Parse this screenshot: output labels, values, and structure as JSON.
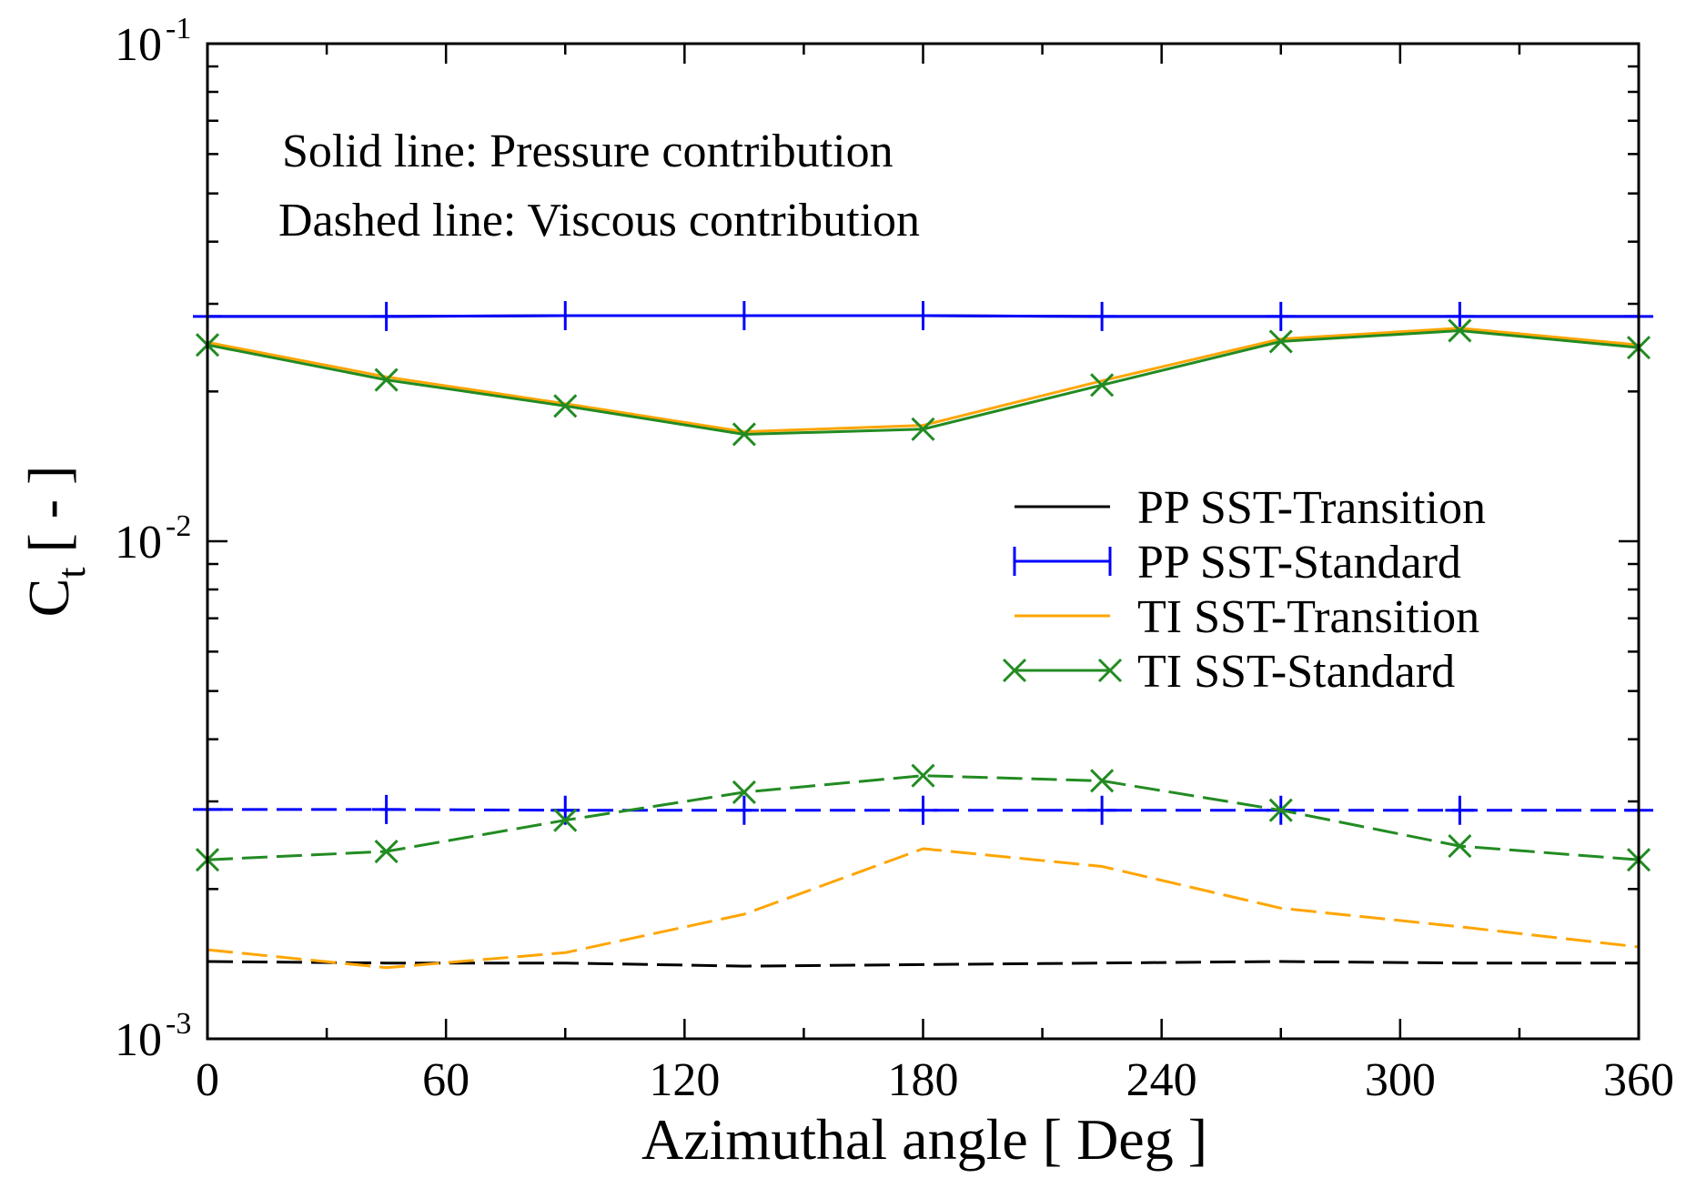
{
  "chart_data": {
    "type": "line",
    "xlabel": "Azimuthal angle [ Deg ]",
    "ylabel_main": "C",
    "ylabel_sub": "t",
    "ylabel_units": " [ - ]",
    "xlim": [
      0,
      360
    ],
    "ylim": [
      0.001,
      0.1
    ],
    "yscale": "log",
    "xticks": [
      0,
      60,
      120,
      180,
      240,
      300,
      360
    ],
    "xtick_labels": [
      "0",
      "60",
      "120",
      "180",
      "240",
      "300",
      "360"
    ],
    "yticks": [
      {
        "value": 0.1,
        "base": "10",
        "exp": "-1"
      },
      {
        "value": 0.01,
        "base": "10",
        "exp": "-2"
      },
      {
        "value": 0.001,
        "base": "10",
        "exp": "-3"
      }
    ],
    "annotations": [
      "Solid line: Pressure contribution",
      "Dashed line: Viscous contribution"
    ],
    "legend_position": "right-middle",
    "x": [
      0,
      45,
      90,
      135,
      180,
      225,
      270,
      315,
      360
    ],
    "series": [
      {
        "name": "PP SST-Transition",
        "component": "pressure",
        "style": "solid",
        "marker": "none",
        "color": "#000000",
        "in_legend": true,
        "values": [
          0.0283,
          0.0283,
          0.0284,
          0.0284,
          0.0284,
          0.0283,
          0.0283,
          0.0283,
          0.0283
        ]
      },
      {
        "name": "PP SST-Standard",
        "component": "pressure",
        "style": "solid",
        "marker": "plus",
        "color": "#0000ff",
        "in_legend": true,
        "values": [
          0.0283,
          0.0283,
          0.0284,
          0.0284,
          0.0284,
          0.0283,
          0.0283,
          0.0283,
          0.0283
        ]
      },
      {
        "name": "TI SST-Transition",
        "component": "pressure",
        "style": "solid",
        "marker": "none",
        "color": "#ffa500",
        "in_legend": true,
        "values": [
          0.0251,
          0.0214,
          0.0189,
          0.0166,
          0.0171,
          0.021,
          0.0255,
          0.0268,
          0.0248
        ]
      },
      {
        "name": "TI SST-Standard",
        "component": "pressure",
        "style": "solid",
        "marker": "x",
        "color": "#228b22",
        "in_legend": true,
        "values": [
          0.0248,
          0.0211,
          0.0187,
          0.0164,
          0.0168,
          0.0206,
          0.0252,
          0.0265,
          0.0245
        ]
      },
      {
        "name": "PP SST-Transition",
        "component": "viscous",
        "style": "dashed",
        "marker": "none",
        "color": "#000000",
        "in_legend": false,
        "values": [
          0.00143,
          0.00142,
          0.00142,
          0.0014,
          0.00141,
          0.00142,
          0.00143,
          0.00142,
          0.00142
        ]
      },
      {
        "name": "PP SST-Standard",
        "component": "viscous",
        "style": "dashed",
        "marker": "plus",
        "color": "#0000ff",
        "in_legend": false,
        "values": [
          0.00289,
          0.00289,
          0.00288,
          0.00288,
          0.00288,
          0.00288,
          0.00288,
          0.00288,
          0.00288
        ]
      },
      {
        "name": "TI SST-Transition",
        "component": "viscous",
        "style": "dashed",
        "marker": "none",
        "color": "#ffa500",
        "in_legend": false,
        "values": [
          0.00151,
          0.00139,
          0.00149,
          0.00178,
          0.00241,
          0.00222,
          0.00183,
          0.00168,
          0.00153
        ]
      },
      {
        "name": "TI SST-Standard",
        "component": "viscous",
        "style": "dashed",
        "marker": "x",
        "color": "#228b22",
        "in_legend": false,
        "values": [
          0.00229,
          0.00238,
          0.00275,
          0.00313,
          0.00338,
          0.0033,
          0.00288,
          0.00244,
          0.00229
        ]
      }
    ]
  }
}
